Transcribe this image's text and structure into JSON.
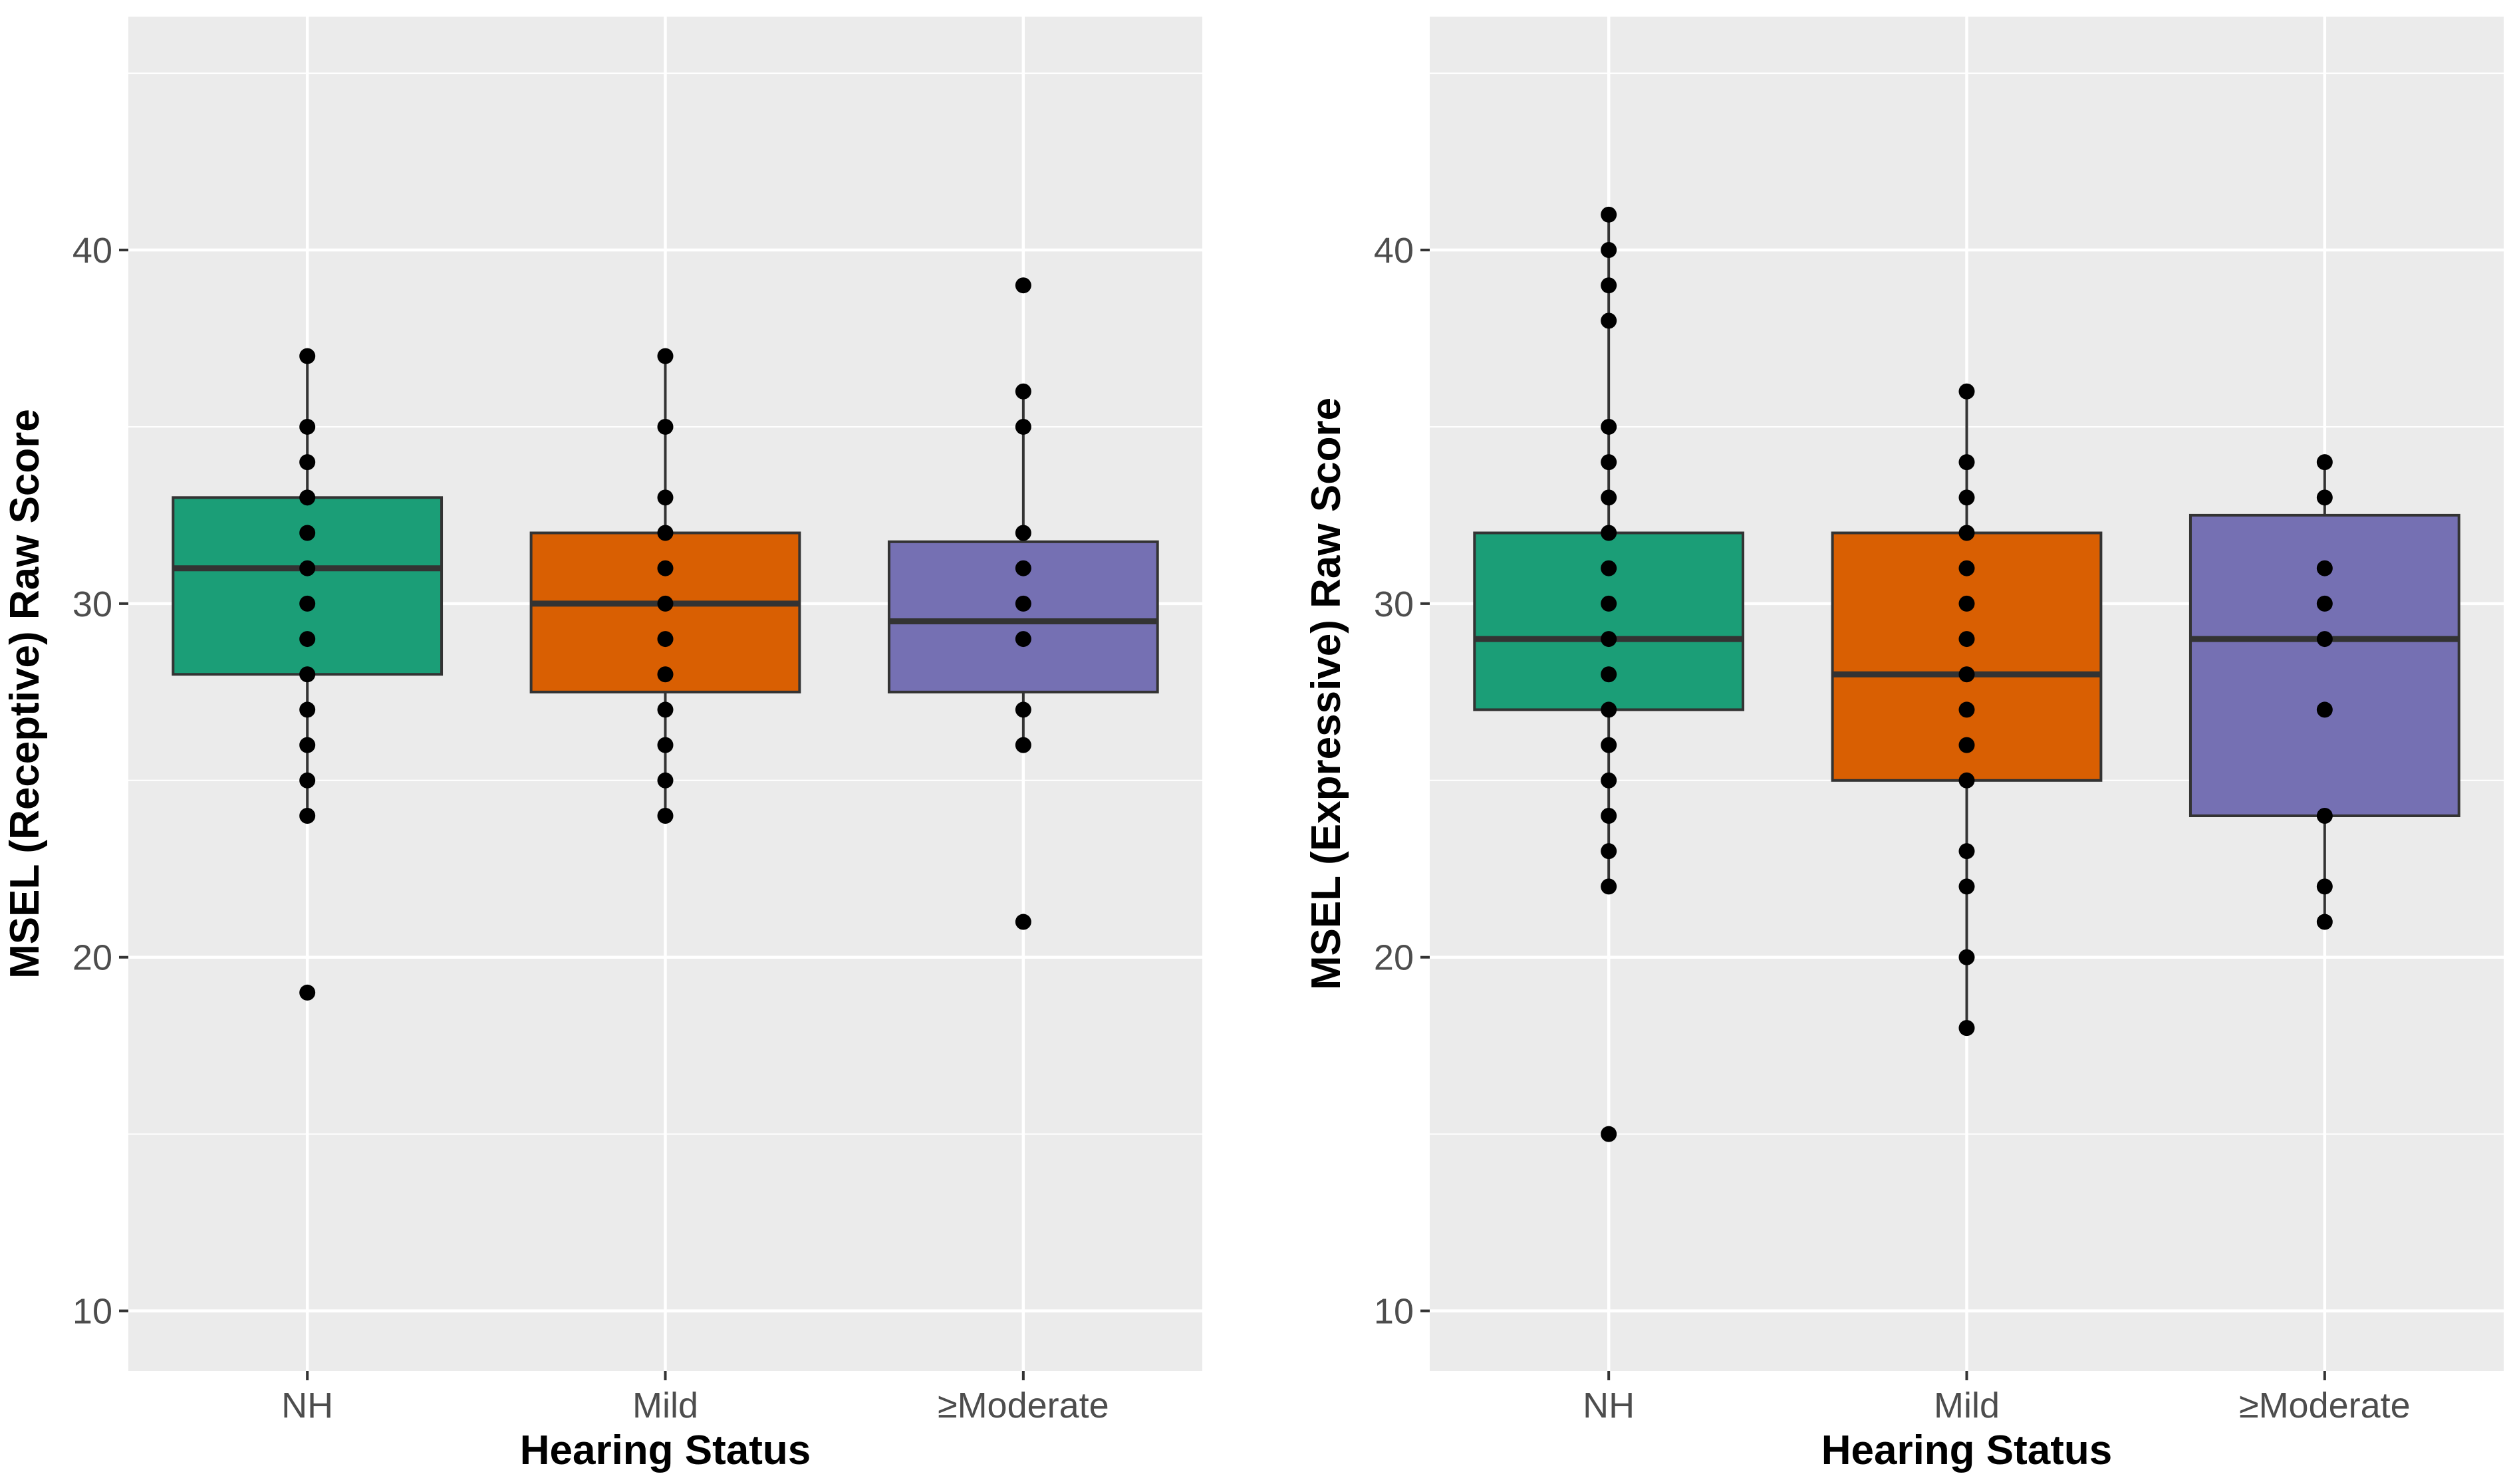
{
  "chart_data": [
    {
      "type": "box",
      "xlabel": "Hearing Status",
      "ylabel": "MSEL (Receptive) Raw Score",
      "ylim": [
        8.3,
        46.6
      ],
      "yticks": [
        10,
        20,
        30,
        40
      ],
      "categories": [
        "NH",
        "Mild",
        "≥Moderate"
      ],
      "boxes": [
        {
          "category": "NH",
          "color": "#1B9E77",
          "q1": 28,
          "median": 31,
          "q3": 33,
          "whisker_low": 24,
          "whisker_high": 37,
          "points": [
            19,
            24,
            25,
            26,
            27,
            28,
            29,
            30,
            31,
            32,
            33,
            34,
            35,
            37
          ]
        },
        {
          "category": "Mild",
          "color": "#D95F02",
          "q1": 27.5,
          "median": 30,
          "q3": 32,
          "whisker_low": 24,
          "whisker_high": 37,
          "points": [
            24,
            25,
            26,
            27,
            28,
            29,
            30,
            31,
            32,
            33,
            35,
            37
          ]
        },
        {
          "category": "≥Moderate",
          "color": "#7570B3",
          "q1": 27.5,
          "median": 29.5,
          "q3": 31.75,
          "whisker_low": 26,
          "whisker_high": 36,
          "points": [
            21,
            26,
            27,
            29,
            30,
            31,
            32,
            35,
            36,
            39
          ]
        }
      ]
    },
    {
      "type": "box",
      "xlabel": "Hearing Status",
      "ylabel": "MSEL (Expressive) Raw Score",
      "ylim": [
        8.3,
        46.6
      ],
      "yticks": [
        10,
        20,
        30,
        40
      ],
      "categories": [
        "NH",
        "Mild",
        "≥Moderate"
      ],
      "boxes": [
        {
          "category": "NH",
          "color": "#1B9E77",
          "q1": 27,
          "median": 29,
          "q3": 32,
          "whisker_low": 22,
          "whisker_high": 41,
          "points": [
            15,
            22,
            23,
            24,
            25,
            26,
            27,
            28,
            29,
            30,
            31,
            32,
            33,
            34,
            35,
            38,
            39,
            40,
            41
          ]
        },
        {
          "category": "Mild",
          "color": "#D95F02",
          "q1": 25,
          "median": 28,
          "q3": 32,
          "whisker_low": 18,
          "whisker_high": 36,
          "points": [
            18,
            20,
            22,
            23,
            25,
            26,
            27,
            28,
            29,
            30,
            31,
            32,
            33,
            34,
            36
          ]
        },
        {
          "category": "≥Moderate",
          "color": "#7570B3",
          "q1": 24,
          "median": 29,
          "q3": 32.5,
          "whisker_low": 21,
          "whisker_high": 34,
          "points": [
            21,
            22,
            24,
            27,
            29,
            30,
            31,
            33,
            34
          ]
        }
      ]
    }
  ]
}
